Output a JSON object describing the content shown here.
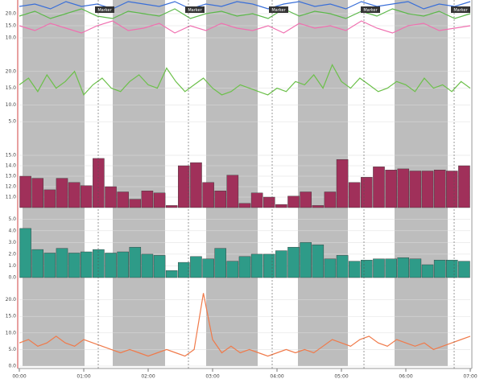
{
  "chart_data": [
    {
      "type": "line",
      "ylim": [
        5,
        25
      ],
      "yticks": [
        {
          "value": 20,
          "label": "20.0"
        },
        {
          "value": 15,
          "label": "15.0"
        },
        {
          "value": 10,
          "label": "10.0"
        }
      ],
      "series": [
        {
          "color": "#3a6fd8",
          "values": [
            23,
            24,
            22,
            25,
            23,
            24,
            22,
            25,
            24,
            23,
            25,
            22,
            24,
            23,
            25,
            24,
            22,
            24,
            25,
            23,
            24,
            22,
            25,
            23,
            24,
            25,
            22,
            24,
            23,
            25
          ]
        },
        {
          "color": "#5cb84a",
          "values": [
            19,
            21,
            18,
            20,
            22,
            19,
            18,
            21,
            20,
            19,
            22,
            18,
            20,
            21,
            19,
            20,
            18,
            22,
            19,
            21,
            20,
            18,
            21,
            19,
            22,
            20,
            19,
            21,
            18,
            20
          ]
        },
        {
          "color": "#f070b0",
          "values": [
            15,
            13,
            16,
            14,
            12,
            15,
            17,
            13,
            14,
            16,
            12,
            15,
            13,
            16,
            14,
            13,
            15,
            12,
            16,
            14,
            15,
            13,
            17,
            14,
            12,
            15,
            16,
            13,
            14,
            15
          ]
        }
      ]
    },
    {
      "type": "line",
      "ylim": [
        0,
        25
      ],
      "yticks": [
        {
          "value": 20,
          "label": "20.0"
        },
        {
          "value": 15,
          "label": "15.0"
        },
        {
          "value": 10,
          "label": "10.0"
        },
        {
          "value": 5,
          "label": "5.0"
        }
      ],
      "series": [
        {
          "color": "#6cc04a",
          "values": [
            16,
            18,
            14,
            19,
            15,
            17,
            20,
            13,
            16,
            18,
            15,
            14,
            17,
            19,
            16,
            15,
            21,
            17,
            14,
            16,
            18,
            15,
            13,
            14,
            16,
            15,
            14,
            13,
            15,
            14,
            17,
            16,
            19,
            15,
            22,
            17,
            15,
            18,
            16,
            14,
            15,
            17,
            16,
            14,
            18,
            15,
            16,
            14,
            17,
            15
          ]
        }
      ]
    },
    {
      "type": "bar",
      "color": "#a0305a",
      "ylim": [
        10,
        16
      ],
      "yticks": [
        {
          "value": 15,
          "label": "15.0"
        },
        {
          "value": 14,
          "label": "14.0"
        },
        {
          "value": 13,
          "label": "13.0"
        },
        {
          "value": 12,
          "label": "12.0"
        },
        {
          "value": 11,
          "label": "11.0"
        }
      ],
      "values": [
        13.0,
        12.8,
        11.7,
        12.8,
        12.4,
        12.1,
        14.7,
        12.0,
        11.5,
        10.8,
        11.6,
        11.4,
        10.2,
        14.0,
        14.3,
        12.4,
        11.6,
        13.1,
        10.4,
        11.4,
        11.0,
        10.3,
        11.1,
        11.5,
        10.2,
        11.5,
        14.6,
        12.4,
        12.9,
        13.9,
        13.6,
        13.7,
        13.5,
        13.5,
        13.6,
        13.5,
        14.0
      ]
    },
    {
      "type": "bar",
      "color": "#2e9b88",
      "ylim": [
        0,
        5.5
      ],
      "yticks": [
        {
          "value": 5,
          "label": "5.0"
        },
        {
          "value": 4,
          "label": "4.0"
        },
        {
          "value": 3,
          "label": "3.0"
        },
        {
          "value": 2,
          "label": "2.0"
        },
        {
          "value": 1,
          "label": "1.0"
        },
        {
          "value": 0,
          "label": "0.0"
        }
      ],
      "values": [
        4.2,
        2.4,
        2.1,
        2.5,
        2.1,
        2.2,
        2.4,
        2.1,
        2.2,
        2.6,
        2.0,
        1.9,
        0.6,
        1.3,
        1.8,
        1.6,
        2.5,
        1.4,
        1.8,
        2.0,
        2.0,
        2.3,
        2.6,
        3.0,
        2.8,
        1.6,
        1.9,
        1.4,
        1.5,
        1.6,
        1.6,
        1.7,
        1.6,
        1.1,
        1.5,
        1.5,
        1.4
      ]
    },
    {
      "type": "line",
      "ylim": [
        0,
        25
      ],
      "yticks": [
        {
          "value": 20,
          "label": "20.0"
        },
        {
          "value": 15,
          "label": "15.0"
        },
        {
          "value": 10,
          "label": "10.0"
        },
        {
          "value": 5,
          "label": "5.0"
        },
        {
          "value": 0,
          "label": "0.0"
        }
      ],
      "series": [
        {
          "color": "#f07a4a",
          "values": [
            7,
            8,
            6,
            7,
            9,
            7,
            6,
            8,
            7,
            6,
            5,
            4,
            5,
            4,
            3,
            4,
            5,
            4,
            3,
            5,
            22,
            8,
            4,
            6,
            4,
            5,
            4,
            3,
            4,
            5,
            4,
            5,
            4,
            6,
            8,
            7,
            6,
            8,
            9,
            7,
            6,
            8,
            7,
            6,
            7,
            5,
            6,
            7,
            8,
            9
          ]
        }
      ]
    }
  ],
  "markers": [
    "Marker",
    "Marker",
    "Marker",
    "Marker",
    "Marker"
  ],
  "time_labels": [
    "00:00",
    "01:00",
    "02:00",
    "03:00",
    "04:00",
    "05:00",
    "06:00",
    "07:00"
  ]
}
